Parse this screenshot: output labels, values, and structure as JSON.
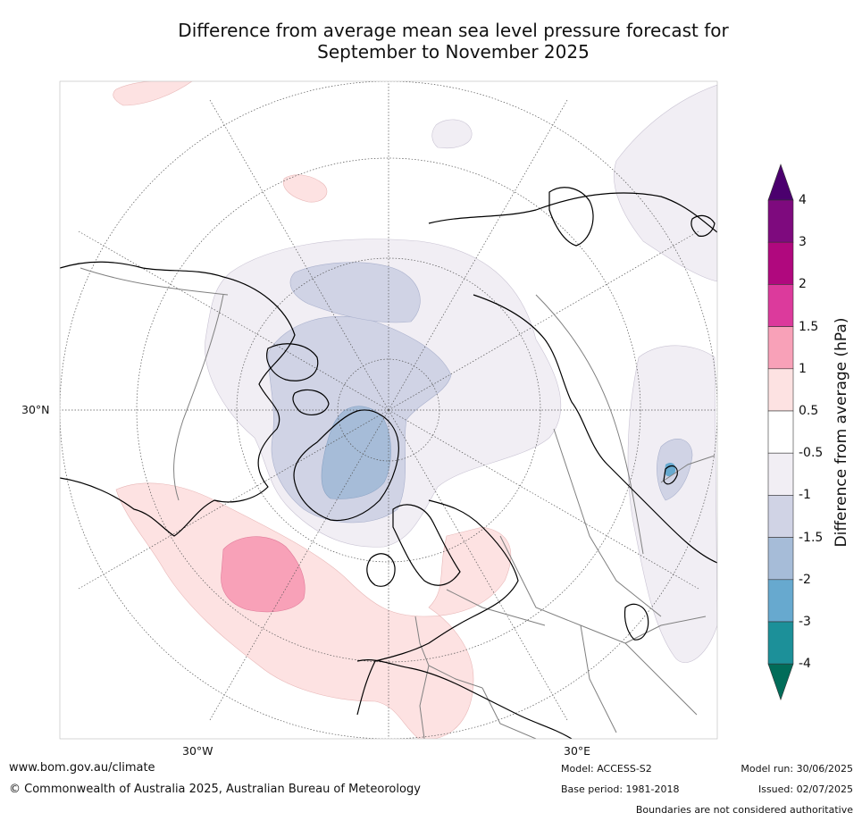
{
  "title": {
    "line1": "Difference from average mean sea level pressure forecast for",
    "line2": "September to November 2025"
  },
  "map": {
    "projection": "north-polar-stereographic",
    "coastline_color": "#000000",
    "border_color": "#808080",
    "graticule_color": "#555555",
    "labels": {
      "lat_30n": "30°N",
      "lon_30w": "30°W",
      "lon_30e": "30°E"
    }
  },
  "colorbar": {
    "title": "Difference from average (hPa)",
    "ticks": [
      "4",
      "3",
      "2",
      "1.5",
      "1",
      "0.5",
      "-0.5",
      "-1",
      "-1.5",
      "-2",
      "-3",
      "-4"
    ],
    "bins": [
      {
        "range": "> 4",
        "color": "#4b006e"
      },
      {
        "range": "3 to 4",
        "color": "#7e0a7e"
      },
      {
        "range": "2 to 3",
        "color": "#b0087e"
      },
      {
        "range": "1.5 to 2",
        "color": "#dc3a9c"
      },
      {
        "range": "1 to 1.5",
        "color": "#f8a1b8"
      },
      {
        "range": "0.5 to 1",
        "color": "#fde2e2"
      },
      {
        "range": "-0.5 to 0.5",
        "color": "#ffffff"
      },
      {
        "range": "-1 to -0.5",
        "color": "#f1eef4"
      },
      {
        "range": "-1.5 to -1",
        "color": "#d0d3e5"
      },
      {
        "range": "-2 to -1.5",
        "color": "#a6bcd8"
      },
      {
        "range": "-3 to -2",
        "color": "#67a9cf"
      },
      {
        "range": "-4 to -3",
        "color": "#1c9099"
      },
      {
        "range": "< -4",
        "color": "#016c59"
      }
    ]
  },
  "footer": {
    "website": "www.bom.gov.au/climate",
    "copyright": "© Commonwealth of Australia 2025, Australian Bureau of Meteorology",
    "model": "Model: ACCESS-S2",
    "base_period": "Base period: 1981-2018",
    "model_run": "Model run: 30/06/2025",
    "issued": "Issued: 02/07/2025",
    "disclaimer": "Boundaries are not considered authoritative"
  }
}
